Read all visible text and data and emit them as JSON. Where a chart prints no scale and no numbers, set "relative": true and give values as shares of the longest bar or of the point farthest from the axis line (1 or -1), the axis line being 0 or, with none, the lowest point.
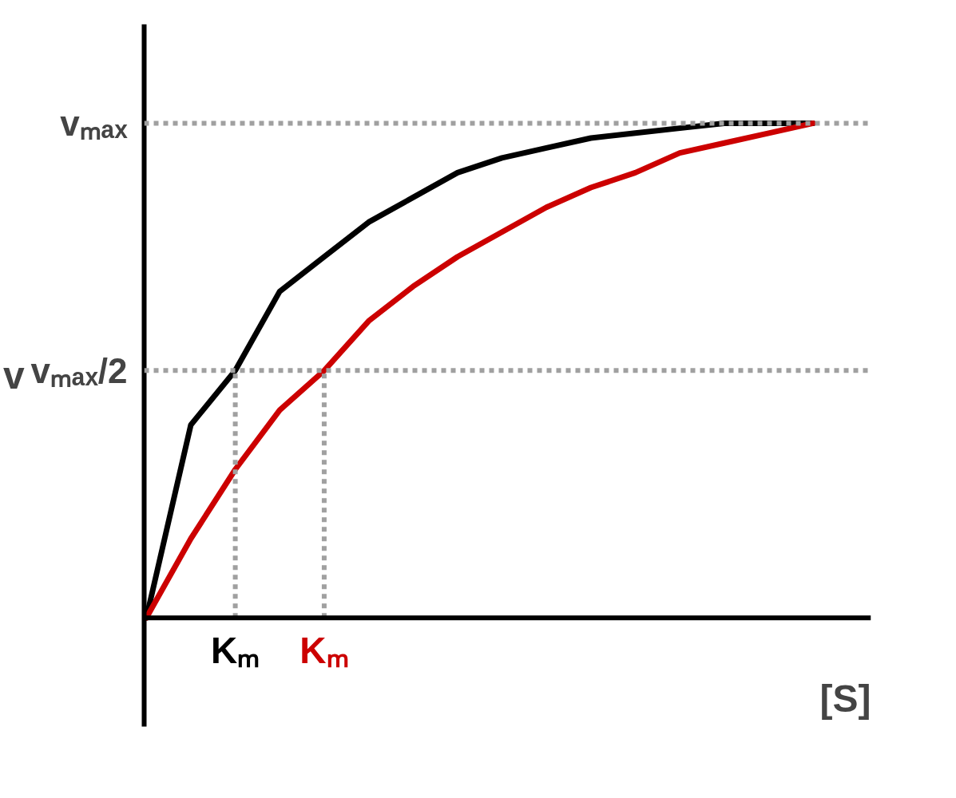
{
  "chart_data": {
    "type": "line",
    "relative": true,
    "xlabel": "[S]",
    "ylabel": "v",
    "categories": [
      null,
      null,
      null,
      null,
      null,
      null,
      null,
      null,
      null,
      null,
      null,
      null,
      null,
      null,
      null,
      null
    ],
    "series": [
      {
        "color": "#000000",
        "values": [
          0,
          0.39,
          0.5,
          0.66,
          0.73,
          0.8,
          0.85,
          0.9,
          0.93,
          0.95,
          0.97,
          0.98,
          0.99,
          1.0,
          1.0,
          1.0
        ]
      },
      {
        "color": "#cc0000",
        "values": [
          0,
          0.16,
          0.3,
          0.42,
          0.5,
          0.6,
          0.67,
          0.73,
          0.78,
          0.83,
          0.87,
          0.9,
          0.94,
          0.96,
          0.98,
          1.0
        ]
      }
    ],
    "ref_lines": [
      {
        "axis": "y",
        "value": 1,
        "label": "vₘₐₓ",
        "color": "#a0a0a0",
        "line_style": "dashed"
      },
      {
        "axis": "y",
        "value": 0.5,
        "label": "vₘₐₓ/2",
        "color": "#a0a0a0",
        "line_style": "dashed"
      }
    ],
    "annotations": [
      "Kₘ",
      "Kₘ"
    ]
  }
}
